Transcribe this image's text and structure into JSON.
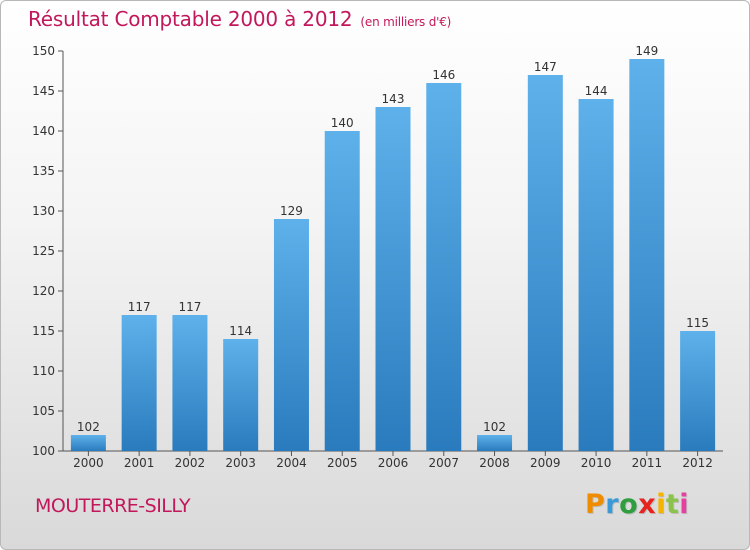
{
  "chart_data": {
    "type": "bar",
    "title": "Résultat Comptable 2000 à 2012",
    "unit_note": "(en milliers d'€)",
    "categories": [
      "2000",
      "2001",
      "2002",
      "2003",
      "2004",
      "2005",
      "2006",
      "2007",
      "2008",
      "2009",
      "2010",
      "2011",
      "2012"
    ],
    "values": [
      102,
      117,
      117,
      114,
      129,
      140,
      143,
      146,
      102,
      147,
      144,
      149,
      115
    ],
    "ylim": [
      100,
      150
    ],
    "yticks": [
      100,
      105,
      110,
      115,
      120,
      125,
      130,
      135,
      140,
      145,
      150
    ],
    "grid": false,
    "xlabel": "",
    "ylabel": ""
  },
  "location": "MOUTERRE-SILLY",
  "brand": {
    "letters": [
      "P",
      "r",
      "o",
      "x",
      "i",
      "t",
      "i"
    ],
    "colors": [
      "#f08c00",
      "#3a9ad9",
      "#2e9e3e",
      "#e6231f",
      "#f4b400",
      "#8bc34a",
      "#e63fa0"
    ]
  },
  "colors": {
    "title": "#c2185b",
    "bar_light": "#5aade6",
    "bar_dark": "#2d7fc0"
  }
}
